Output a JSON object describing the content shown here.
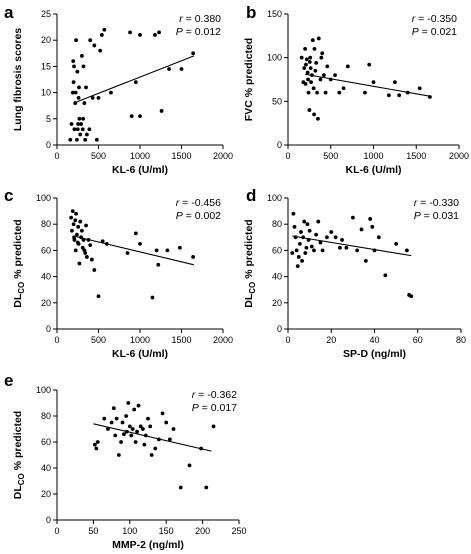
{
  "chart_data": [
    {
      "panel": "a",
      "type": "scatter",
      "xlabel": "KL-6 (U/ml)",
      "ylabel": "Lung fibrosis scores",
      "ylabel_sub": "",
      "ylabel_tail": "",
      "xlim": [
        0,
        2000
      ],
      "ylim": [
        0,
        25
      ],
      "xticks": [
        0,
        500,
        1000,
        1500,
        2000
      ],
      "yticks": [
        0,
        5,
        10,
        15,
        20,
        25
      ],
      "stats": {
        "r_label": "r",
        "r_value": " = 0.380",
        "p_label": "P",
        "p_value": " = 0.012"
      },
      "fit": [
        [
          200,
          8.0
        ],
        [
          1650,
          17.0
        ]
      ],
      "points": [
        [
          160,
          1
        ],
        [
          175,
          4
        ],
        [
          190,
          10
        ],
        [
          195,
          16
        ],
        [
          200,
          12
        ],
        [
          205,
          15
        ],
        [
          210,
          3
        ],
        [
          220,
          8
        ],
        [
          225,
          10
        ],
        [
          230,
          20
        ],
        [
          240,
          1
        ],
        [
          245,
          14
        ],
        [
          250,
          3
        ],
        [
          255,
          4
        ],
        [
          260,
          9
        ],
        [
          265,
          11
        ],
        [
          270,
          5
        ],
        [
          280,
          2
        ],
        [
          290,
          4
        ],
        [
          300,
          17
        ],
        [
          310,
          3
        ],
        [
          315,
          5
        ],
        [
          320,
          15
        ],
        [
          330,
          8
        ],
        [
          340,
          1
        ],
        [
          350,
          11
        ],
        [
          360,
          2
        ],
        [
          390,
          3
        ],
        [
          400,
          20
        ],
        [
          430,
          9
        ],
        [
          450,
          19
        ],
        [
          480,
          1
        ],
        [
          500,
          9
        ],
        [
          520,
          18
        ],
        [
          540,
          21
        ],
        [
          570,
          22
        ],
        [
          650,
          10
        ],
        [
          880,
          21.5
        ],
        [
          900,
          5.5
        ],
        [
          950,
          12
        ],
        [
          1000,
          5.5
        ],
        [
          1000,
          21
        ],
        [
          1180,
          21
        ],
        [
          1230,
          21.5
        ],
        [
          1260,
          6.5
        ],
        [
          1350,
          14.5
        ],
        [
          1500,
          14.5
        ],
        [
          1640,
          17.5
        ]
      ]
    },
    {
      "panel": "b",
      "type": "scatter",
      "xlabel": "KL-6 (U/ml)",
      "ylabel": "FVC % predicted",
      "ylabel_sub": "",
      "ylabel_tail": "",
      "xlim": [
        0,
        2000
      ],
      "ylim": [
        0,
        150
      ],
      "xticks": [
        0,
        500,
        1000,
        1500,
        2000
      ],
      "yticks": [
        0,
        50,
        100,
        150
      ],
      "stats": {
        "r_label": "r",
        "r_value": " = -0.350",
        "p_label": "P",
        "p_value": " = 0.021"
      },
      "fit": [
        [
          200,
          81.0
        ],
        [
          1650,
          56.0
        ]
      ],
      "points": [
        [
          160,
          100
        ],
        [
          180,
          72
        ],
        [
          190,
          88
        ],
        [
          200,
          110
        ],
        [
          205,
          70
        ],
        [
          210,
          92
        ],
        [
          220,
          98
        ],
        [
          230,
          83
        ],
        [
          235,
          75
        ],
        [
          240,
          60
        ],
        [
          250,
          40
        ],
        [
          255,
          95
        ],
        [
          260,
          100
        ],
        [
          265,
          88
        ],
        [
          270,
          72
        ],
        [
          280,
          80
        ],
        [
          290,
          120
        ],
        [
          300,
          65
        ],
        [
          305,
          35
        ],
        [
          310,
          110
        ],
        [
          320,
          85
        ],
        [
          330,
          94
        ],
        [
          340,
          60
        ],
        [
          350,
          30
        ],
        [
          360,
          122
        ],
        [
          380,
          75
        ],
        [
          390,
          100
        ],
        [
          400,
          105
        ],
        [
          420,
          80
        ],
        [
          440,
          60
        ],
        [
          460,
          90
        ],
        [
          500,
          75
        ],
        [
          550,
          80
        ],
        [
          600,
          60
        ],
        [
          650,
          65
        ],
        [
          700,
          90
        ],
        [
          900,
          60
        ],
        [
          950,
          92
        ],
        [
          1000,
          72
        ],
        [
          1180,
          57
        ],
        [
          1250,
          72
        ],
        [
          1300,
          57
        ],
        [
          1400,
          60
        ],
        [
          1540,
          65
        ],
        [
          1660,
          55
        ]
      ]
    },
    {
      "panel": "c",
      "type": "scatter",
      "xlabel": "KL-6 (U/ml)",
      "ylabel": "DL",
      "ylabel_sub": "CO",
      "ylabel_tail": " % predicted",
      "xlim": [
        0,
        2000
      ],
      "ylim": [
        0,
        100
      ],
      "xticks": [
        0,
        500,
        1000,
        1500,
        2000
      ],
      "yticks": [
        0,
        20,
        40,
        60,
        80,
        100
      ],
      "stats": {
        "r_label": "r",
        "r_value": " = -0.456",
        "p_label": "P",
        "p_value": " = 0.002"
      },
      "fit": [
        [
          200,
          71.0
        ],
        [
          1650,
          49.0
        ]
      ],
      "points": [
        [
          170,
          85
        ],
        [
          180,
          75
        ],
        [
          190,
          90
        ],
        [
          200,
          80
        ],
        [
          205,
          70
        ],
        [
          210,
          68
        ],
        [
          220,
          83
        ],
        [
          225,
          60
        ],
        [
          230,
          88
        ],
        [
          240,
          72
        ],
        [
          250,
          66
        ],
        [
          255,
          78
        ],
        [
          260,
          65
        ],
        [
          270,
          50
        ],
        [
          280,
          82
        ],
        [
          290,
          70
        ],
        [
          300,
          75
        ],
        [
          310,
          62
        ],
        [
          320,
          68
        ],
        [
          330,
          60
        ],
        [
          340,
          58
        ],
        [
          350,
          79
        ],
        [
          360,
          55
        ],
        [
          380,
          68
        ],
        [
          400,
          64
        ],
        [
          420,
          53
        ],
        [
          450,
          45
        ],
        [
          500,
          25
        ],
        [
          550,
          67
        ],
        [
          600,
          65
        ],
        [
          850,
          58
        ],
        [
          950,
          73
        ],
        [
          1000,
          65
        ],
        [
          1150,
          24
        ],
        [
          1200,
          60
        ],
        [
          1220,
          49
        ],
        [
          1330,
          60
        ],
        [
          1480,
          62
        ],
        [
          1640,
          55
        ]
      ]
    },
    {
      "panel": "d",
      "type": "scatter",
      "xlabel": "SP-D (ng/ml)",
      "ylabel": "DL",
      "ylabel_sub": "CO",
      "ylabel_tail": " % predicted",
      "xlim": [
        0,
        80
      ],
      "ylim": [
        0,
        100
      ],
      "xticks": [
        0,
        20,
        40,
        60,
        80
      ],
      "yticks": [
        0,
        20,
        40,
        60,
        80,
        100
      ],
      "stats": {
        "r_label": "r",
        "r_value": " = -0.330",
        "p_label": "P",
        "p_value": " = 0.031"
      },
      "fit": [
        [
          2,
          71.0
        ],
        [
          57,
          56.0
        ]
      ],
      "points": [
        [
          2,
          58
        ],
        [
          2.5,
          88
        ],
        [
          3,
          78
        ],
        [
          3.5,
          70
        ],
        [
          4,
          60
        ],
        [
          4.5,
          48
        ],
        [
          5,
          55
        ],
        [
          5.5,
          65
        ],
        [
          6,
          74
        ],
        [
          6.5,
          52
        ],
        [
          7,
          70
        ],
        [
          7.5,
          82
        ],
        [
          8,
          58
        ],
        [
          8.5,
          62
        ],
        [
          9,
          80
        ],
        [
          9.5,
          68
        ],
        [
          10,
          75
        ],
        [
          11,
          63
        ],
        [
          12,
          60
        ],
        [
          13,
          72
        ],
        [
          14,
          82
        ],
        [
          15,
          66
        ],
        [
          16,
          60
        ],
        [
          18,
          70
        ],
        [
          20,
          74
        ],
        [
          22,
          70
        ],
        [
          24,
          62
        ],
        [
          25,
          68
        ],
        [
          27,
          62
        ],
        [
          30,
          85
        ],
        [
          32,
          60
        ],
        [
          34,
          76
        ],
        [
          36,
          52
        ],
        [
          38,
          84
        ],
        [
          39,
          78
        ],
        [
          40,
          60
        ],
        [
          42,
          70
        ],
        [
          45,
          41
        ],
        [
          50,
          65
        ],
        [
          55,
          60
        ],
        [
          56,
          26
        ],
        [
          57,
          25
        ]
      ]
    },
    {
      "panel": "e",
      "type": "scatter",
      "xlabel": "MMP-2 (ng/ml)",
      "ylabel": "DL",
      "ylabel_sub": "CO",
      "ylabel_tail": " % predicted",
      "xlim": [
        0,
        250
      ],
      "ylim": [
        0,
        100
      ],
      "xticks": [
        0,
        50,
        100,
        150,
        200,
        250
      ],
      "yticks": [
        0,
        20,
        40,
        60,
        80,
        100
      ],
      "stats": {
        "r_label": "r",
        "r_value": " = -0.362",
        "p_label": "P",
        "p_value": " = 0.017"
      },
      "fit": [
        [
          50,
          74.0
        ],
        [
          212,
          53.0
        ]
      ],
      "points": [
        [
          52,
          58
        ],
        [
          54,
          55
        ],
        [
          56,
          60
        ],
        [
          65,
          78
        ],
        [
          70,
          70
        ],
        [
          75,
          75
        ],
        [
          78,
          86
        ],
        [
          80,
          65
        ],
        [
          82,
          78
        ],
        [
          85,
          50
        ],
        [
          88,
          60
        ],
        [
          90,
          75
        ],
        [
          92,
          66
        ],
        [
          95,
          80
        ],
        [
          96,
          68
        ],
        [
          98,
          90
        ],
        [
          100,
          72
        ],
        [
          102,
          65
        ],
        [
          104,
          70
        ],
        [
          106,
          85
        ],
        [
          108,
          60
        ],
        [
          110,
          68
        ],
        [
          112,
          88
        ],
        [
          115,
          72
        ],
        [
          118,
          70
        ],
        [
          120,
          58
        ],
        [
          122,
          65
        ],
        [
          125,
          78
        ],
        [
          128,
          72
        ],
        [
          130,
          50
        ],
        [
          135,
          55
        ],
        [
          140,
          62
        ],
        [
          145,
          82
        ],
        [
          150,
          75
        ],
        [
          155,
          62
        ],
        [
          160,
          70
        ],
        [
          170,
          25
        ],
        [
          182,
          42
        ],
        [
          198,
          55
        ],
        [
          205,
          25
        ],
        [
          215,
          72
        ]
      ]
    }
  ]
}
